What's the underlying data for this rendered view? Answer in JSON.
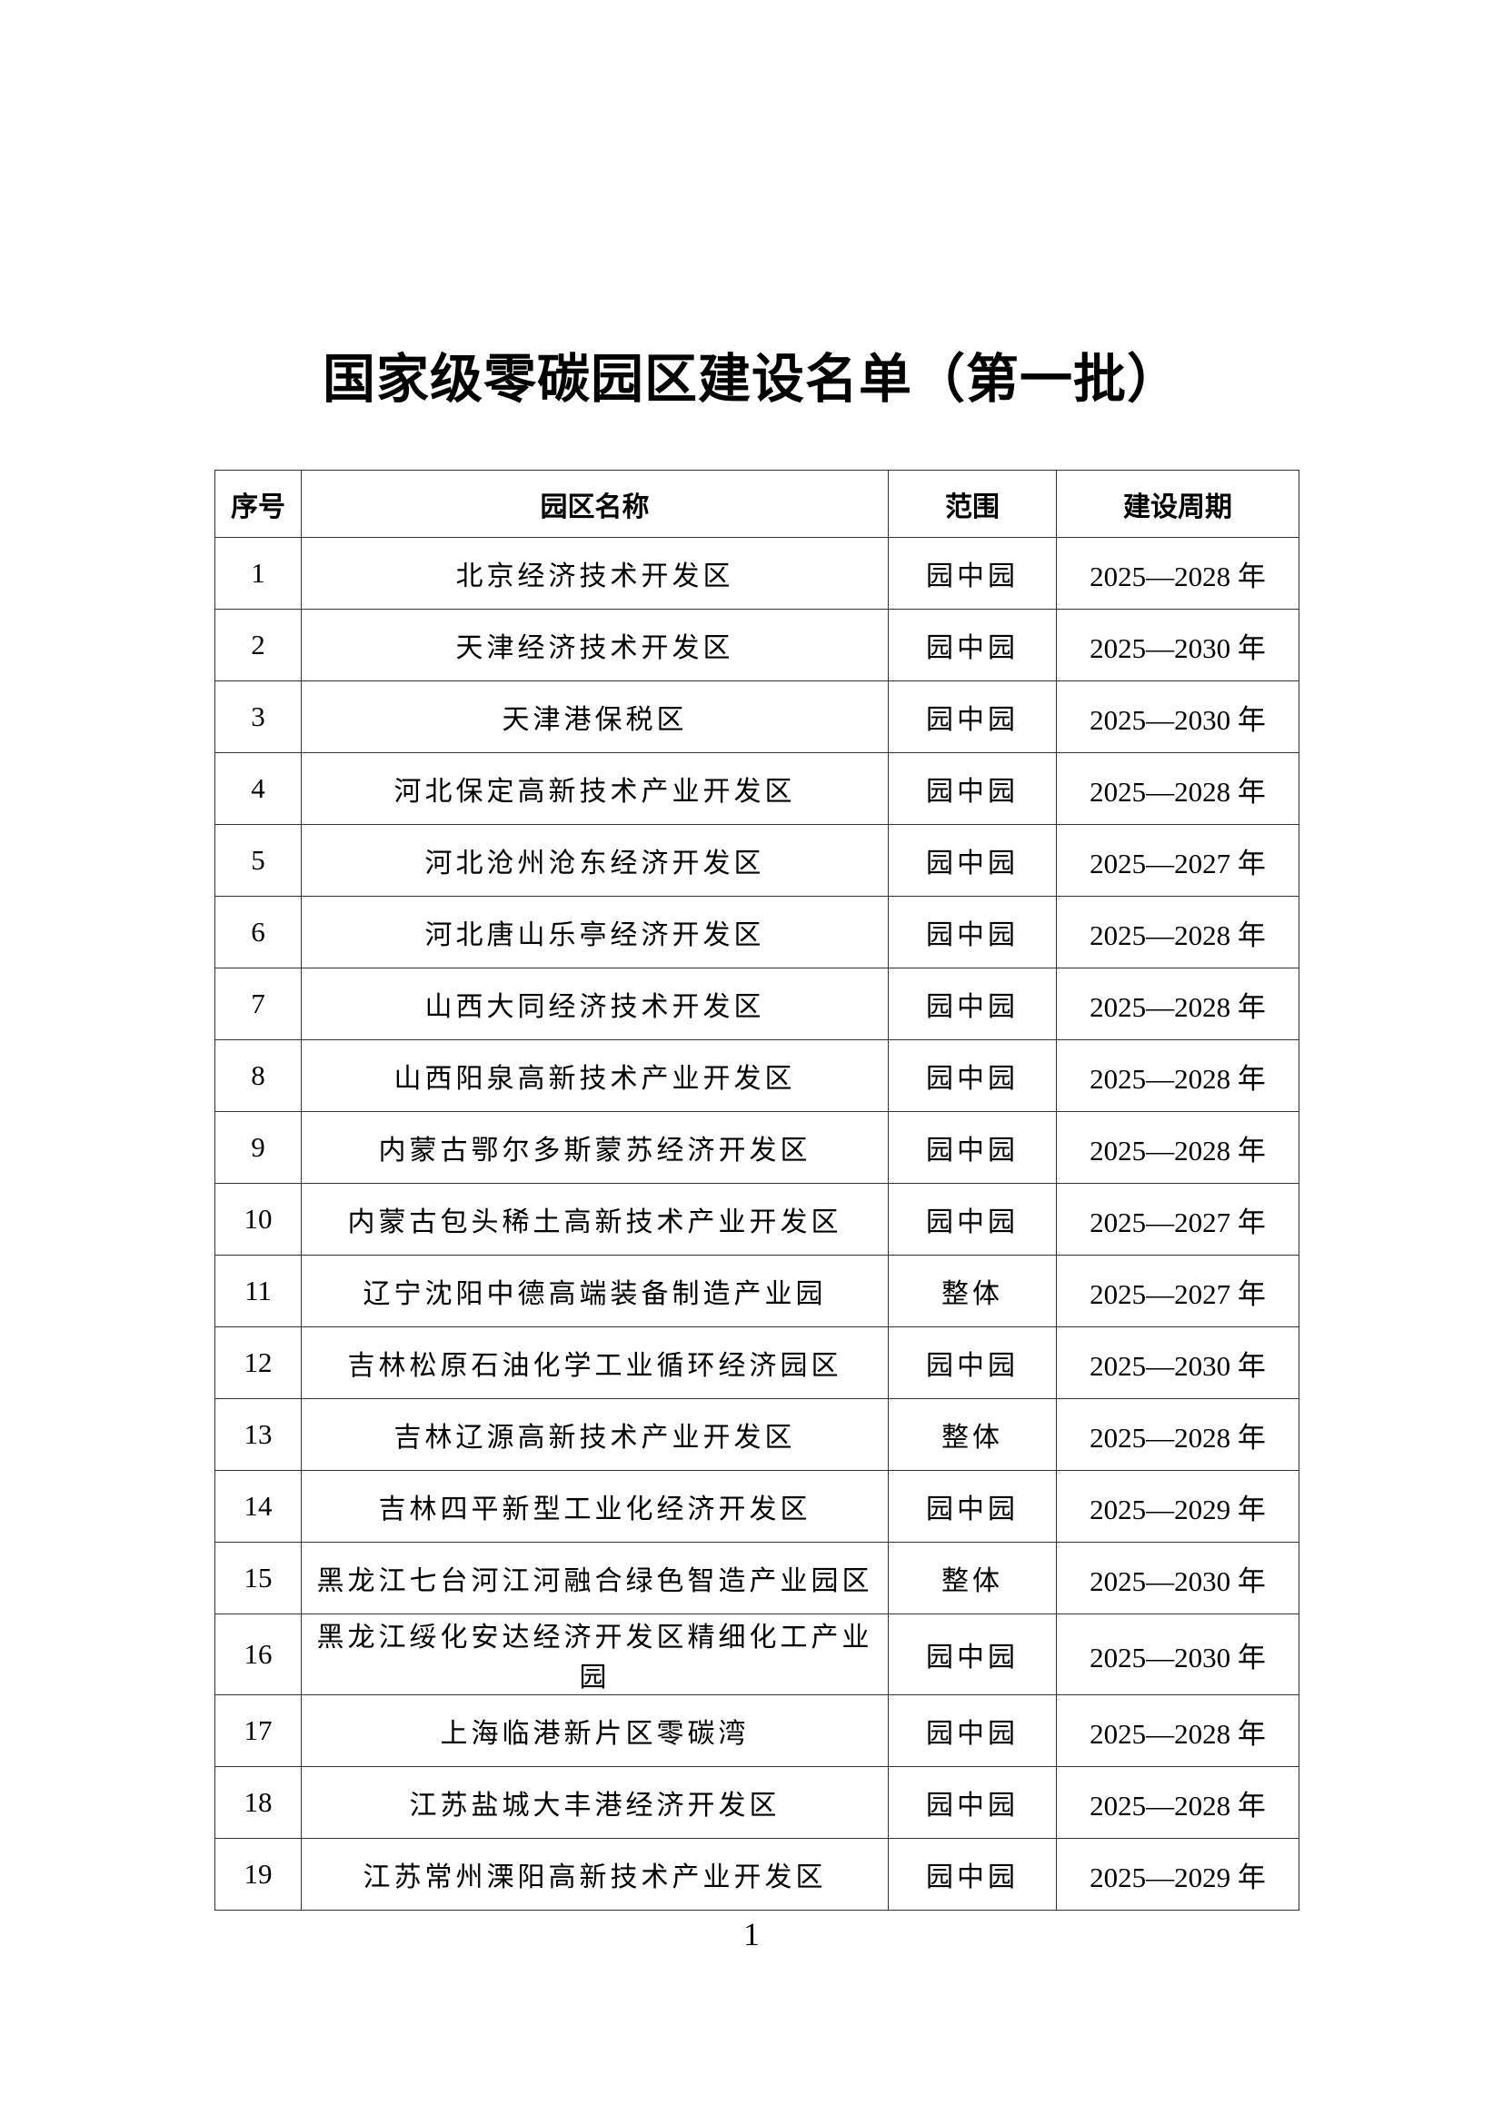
{
  "title": "国家级零碳园区建设名单（第一批）",
  "table": {
    "headers": [
      "序号",
      "园区名称",
      "范围",
      "建设周期"
    ],
    "rows": [
      {
        "no": "1",
        "name": "北京经济技术开发区",
        "scope": "园中园",
        "period": "2025—2028 年"
      },
      {
        "no": "2",
        "name": "天津经济技术开发区",
        "scope": "园中园",
        "period": "2025—2030 年"
      },
      {
        "no": "3",
        "name": "天津港保税区",
        "scope": "园中园",
        "period": "2025—2030 年"
      },
      {
        "no": "4",
        "name": "河北保定高新技术产业开发区",
        "scope": "园中园",
        "period": "2025—2028 年"
      },
      {
        "no": "5",
        "name": "河北沧州沧东经济开发区",
        "scope": "园中园",
        "period": "2025—2027 年"
      },
      {
        "no": "6",
        "name": "河北唐山乐亭经济开发区",
        "scope": "园中园",
        "period": "2025—2028 年"
      },
      {
        "no": "7",
        "name": "山西大同经济技术开发区",
        "scope": "园中园",
        "period": "2025—2028 年"
      },
      {
        "no": "8",
        "name": "山西阳泉高新技术产业开发区",
        "scope": "园中园",
        "period": "2025—2028 年"
      },
      {
        "no": "9",
        "name": "内蒙古鄂尔多斯蒙苏经济开发区",
        "scope": "园中园",
        "period": "2025—2028 年"
      },
      {
        "no": "10",
        "name": "内蒙古包头稀土高新技术产业开发区",
        "scope": "园中园",
        "period": "2025—2027 年"
      },
      {
        "no": "11",
        "name": "辽宁沈阳中德高端装备制造产业园",
        "scope": "整体",
        "period": "2025—2027 年"
      },
      {
        "no": "12",
        "name": "吉林松原石油化学工业循环经济园区",
        "scope": "园中园",
        "period": "2025—2030 年"
      },
      {
        "no": "13",
        "name": "吉林辽源高新技术产业开发区",
        "scope": "整体",
        "period": "2025—2028 年"
      },
      {
        "no": "14",
        "name": "吉林四平新型工业化经济开发区",
        "scope": "园中园",
        "period": "2025—2029 年"
      },
      {
        "no": "15",
        "name": "黑龙江七台河江河融合绿色智造产业园区",
        "scope": "整体",
        "period": "2025—2030 年"
      },
      {
        "no": "16",
        "name": "黑龙江绥化安达经济开发区精细化工产业园",
        "scope": "园中园",
        "period": "2025—2030 年"
      },
      {
        "no": "17",
        "name": "上海临港新片区零碳湾",
        "scope": "园中园",
        "period": "2025—2028 年"
      },
      {
        "no": "18",
        "name": "江苏盐城大丰港经济开发区",
        "scope": "园中园",
        "period": "2025—2028 年"
      },
      {
        "no": "19",
        "name": "江苏常州溧阳高新技术产业开发区",
        "scope": "园中园",
        "period": "2025—2029 年"
      }
    ]
  },
  "page_number": "1"
}
